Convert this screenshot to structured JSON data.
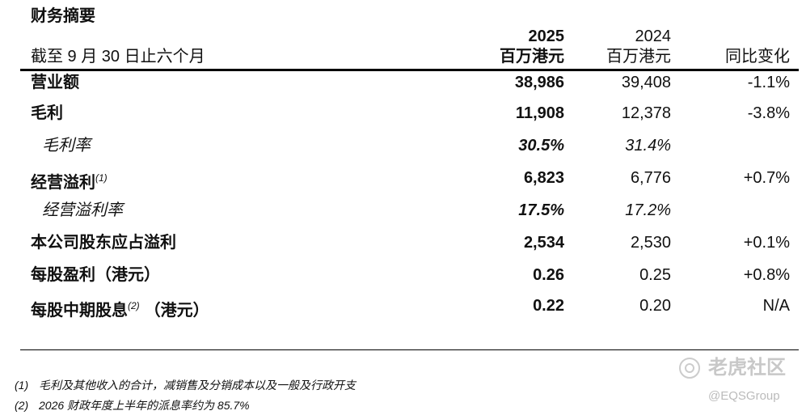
{
  "header": {
    "title": "财务摘要",
    "period": "截至 9 月 30 日止六个月",
    "columns": [
      {
        "year": "2025",
        "unit": "百万港元"
      },
      {
        "year": "2024",
        "unit": "百万港元"
      },
      {
        "label": "同比变化"
      }
    ]
  },
  "table": {
    "rows": [
      {
        "label": "营业额",
        "values": [
          "38,986",
          "39,408",
          "-1.1%"
        ]
      },
      {
        "label": "毛利",
        "values": [
          "11,908",
          "12,378",
          "-3.8%"
        ]
      },
      {
        "label": "毛利率",
        "values": [
          "30.5%",
          "31.4%"
        ]
      },
      {
        "label": "经营溢利",
        "note": "(1)",
        "values": [
          "6,823",
          "6,776",
          "+0.7%"
        ]
      },
      {
        "label": "经营溢利率",
        "values": [
          "17.5%",
          "17.2%"
        ]
      },
      {
        "label": "本公司股东应占溢利",
        "values": [
          "2,534",
          "2,530",
          "+0.1%"
        ]
      },
      {
        "label": "每股盈利（港元）",
        "values": [
          "0.26",
          "0.25",
          "+0.8%"
        ]
      },
      {
        "label": "每股中期股息",
        "note": "(2)",
        "suffix": "（港元）",
        "values": [
          "0.22",
          "0.20",
          "N/A"
        ]
      }
    ]
  },
  "footnotes": [
    {
      "mark": "(1)",
      "text": "毛利及其他收入的合计，减销售及分销成本以及一般及行政开支"
    },
    {
      "mark": "(2)",
      "text": "2026 财政年度上半年的派息率约为 85.7%"
    }
  ],
  "watermark": {
    "brand": "老虎社区",
    "handle": "@EQSGroup"
  }
}
